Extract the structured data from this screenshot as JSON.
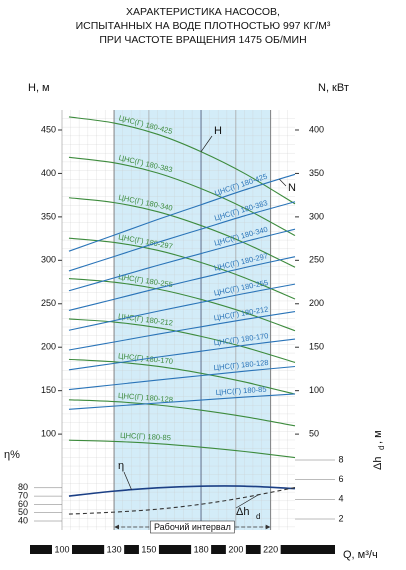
{
  "chart_data": {
    "type": "pump-curve",
    "title": [
      "ХАРАКТЕРИСТИКА НАСОСОВ,",
      "ИСПЫТАННЫХ НА ВОДЕ ПЛОТНОСТЬЮ 997 КГ/М³",
      "ПРИ ЧАСТОТЕ ВРАЩЕНИЯ 1475 ОБ/МИН"
    ],
    "x_label": "Q, м³/ч",
    "xlim": [
      100,
      234
    ],
    "xticks": [
      100,
      130,
      150,
      180,
      200,
      220
    ],
    "y_label": "H, м",
    "ylim": [
      0,
      473
    ],
    "yticks": [
      100,
      150,
      200,
      250,
      300,
      350,
      400,
      450
    ],
    "y2_label": "N, кВт",
    "y2lim": [
      -50,
      423
    ],
    "y2ticks": [
      50,
      100,
      150,
      200,
      250,
      300,
      350,
      400
    ],
    "eta_label": "η%",
    "eta_lim": [
      40,
      80
    ],
    "eta_ticks": [
      40,
      50,
      60,
      70,
      80
    ],
    "dh_label": {
      "main": "Δh",
      "sub": "d",
      "unit": ", м"
    },
    "dh_lim": [
      2,
      8
    ],
    "dh_ticks": [
      2,
      4,
      6,
      8
    ],
    "x": [
      104,
      130,
      155,
      180,
      205,
      234
    ],
    "head_series": [
      {
        "name": "ЦНС(Г) 180-425",
        "color": "#3d8b3d",
        "values": [
          465,
          458,
          445,
          425,
          400,
          365
        ]
      },
      {
        "name": "ЦНС(Г) 180-383",
        "color": "#3d8b3d",
        "values": [
          418.5,
          412.2,
          400.5,
          382.5,
          360,
          328.5
        ]
      },
      {
        "name": "ЦНС(Г) 180-340",
        "color": "#3d8b3d",
        "values": [
          372,
          366.4,
          356,
          340,
          320,
          292
        ]
      },
      {
        "name": "ЦНС(Г) 180-297",
        "color": "#3d8b3d",
        "values": [
          325.5,
          320.6,
          311.5,
          297.5,
          280,
          255.5
        ]
      },
      {
        "name": "ЦНС(Г) 180-255",
        "color": "#3d8b3d",
        "values": [
          279,
          274.8,
          267,
          255,
          240,
          219
        ]
      },
      {
        "name": "ЦНС(Г) 180-212",
        "color": "#3d8b3d",
        "values": [
          232.5,
          229,
          222.5,
          212.5,
          200,
          182.5
        ]
      },
      {
        "name": "ЦНС(Г) 180-170",
        "color": "#3d8b3d",
        "values": [
          186,
          183.2,
          178,
          170,
          160,
          146
        ]
      },
      {
        "name": "ЦНС(Г) 180-128",
        "color": "#3d8b3d",
        "values": [
          139.5,
          137.4,
          133.5,
          127.5,
          120,
          109.5
        ]
      },
      {
        "name": "ЦНС(Г) 180-85",
        "color": "#3d8b3d",
        "values": [
          93,
          91.6,
          89,
          85,
          80,
          73
        ]
      }
    ],
    "power_series": [
      {
        "name": "ЦНС(Г) 180-425",
        "color": "#2a74b8",
        "axis": "y2",
        "values": [
          260.5,
          279,
          297,
          314,
          331,
          349
        ]
      },
      {
        "name": "ЦНС(Г) 180-383",
        "color": "#2a74b8",
        "axis": "y2",
        "values": [
          237.8,
          254.4,
          270.6,
          285.9,
          301.2,
          317.4
        ]
      },
      {
        "name": "ЦНС(Г) 180-340",
        "color": "#2a74b8",
        "axis": "y2",
        "values": [
          215,
          229.8,
          244.2,
          257.8,
          271.4,
          285.8
        ]
      },
      {
        "name": "ЦНС(Г) 180-297",
        "color": "#2a74b8",
        "axis": "y2",
        "values": [
          192.3,
          205.2,
          217.8,
          229.7,
          241.6,
          254.2
        ]
      },
      {
        "name": "ЦНС(Г) 180-255",
        "color": "#2a74b8",
        "axis": "y2",
        "values": [
          169.5,
          180.6,
          191.4,
          201.6,
          211.8,
          222.6
        ]
      },
      {
        "name": "ЦНС(Г) 180-212",
        "color": "#2a74b8",
        "axis": "y2",
        "values": [
          146.8,
          156,
          165,
          173.5,
          182,
          191
        ]
      },
      {
        "name": "ЦНС(Г) 180-170",
        "color": "#2a74b8",
        "axis": "y2",
        "values": [
          124,
          131.4,
          138.6,
          145.4,
          152.2,
          159.4
        ]
      },
      {
        "name": "ЦНС(Г) 180-128",
        "color": "#2a74b8",
        "axis": "y2",
        "values": [
          101.3,
          106.8,
          112.2,
          117.3,
          122.4,
          127.8
        ]
      },
      {
        "name": "ЦНС(Г) 180-85",
        "color": "#2a74b8",
        "axis": "y2",
        "values": [
          78.5,
          82.2,
          85.8,
          89.2,
          92.6,
          96.2
        ]
      }
    ],
    "efficiency": {
      "name": "η",
      "color": "#1b3f85",
      "values": [
        70,
        76,
        80,
        82,
        82,
        79
      ]
    },
    "npsh": {
      "name": "Δh",
      "sub": "d",
      "color": "#333333",
      "values": [
        2.5,
        2.7,
        3.0,
        3.5,
        4.2,
        5.2
      ]
    },
    "curve_labels": {
      "head": "H",
      "power": "N"
    },
    "working_interval": {
      "label": "Рабочий интервал",
      "range": [
        130,
        220
      ]
    },
    "nominal_q": 180
  }
}
